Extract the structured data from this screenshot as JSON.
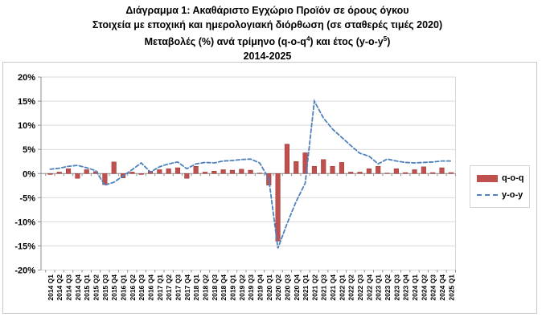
{
  "title": {
    "line1": "Διάγραμμα 1: Ακαθάριστο Εγχώριο Προϊόν σε όρους όγκου",
    "line2": "Στοιχεία με εποχική και ημερολογιακή διόρθωση (σε σταθερές τιμές 2020)",
    "line3_pre": "Μεταβολές (%) ανά τρίμηνο (q-o-q",
    "line3_sup1": "4",
    "line3_mid": ") και έτος (y-o-y",
    "line3_sup2": "5",
    "line3_post": ")",
    "line4": "2014-2025"
  },
  "legend": {
    "qoq_label": "q-o-q",
    "yoy_label": "y-o-y"
  },
  "colors": {
    "bar": "#C0504D",
    "bar_border": "#943634",
    "line": "#4F81BD",
    "grid": "#D9D9D9",
    "axis": "#8C8C8C",
    "plot_border": "#D9D9D9",
    "text": "#000000"
  },
  "chart_data": {
    "type": "combo-bar-line",
    "title": "Διάγραμμα 1: Ακαθάριστο Εγχώριο Προϊόν σε όρους όγκου, Μεταβολές (%) ανά τρίμηνο (q-o-q) και έτος (y-o-y), 2014-2025",
    "xlabel": "",
    "ylabel": "",
    "ylim": [
      -20,
      20
    ],
    "y_tick_step": 5,
    "ylabel_ticks": [
      "20%",
      "15%",
      "10%",
      "5%",
      "0%",
      "-5%",
      "-10%",
      "-15%",
      "-20%"
    ],
    "grid": true,
    "legend_position": "right",
    "categories": [
      "2014 Q1",
      "2014 Q2",
      "2014 Q3",
      "2014 Q4",
      "2015 Q1",
      "2015 Q2",
      "2015 Q3",
      "2015 Q4",
      "2016 Q1",
      "2016 Q2",
      "2016 Q3",
      "2016 Q4",
      "2017 Q1",
      "2017 Q2",
      "2017 Q3",
      "2017 Q4",
      "2018 Q1",
      "2018 Q2",
      "2018 Q3",
      "2018 Q4",
      "2019 Q1",
      "2019 Q2",
      "2019 Q3",
      "2019 Q4",
      "2020 Q1",
      "2020 Q2",
      "2020 Q3",
      "2020 Q4",
      "2021 Q1",
      "2021 Q2",
      "2021 Q3",
      "2021 Q4",
      "2022 Q1",
      "2022 Q2",
      "2022 Q3",
      "2022 Q4",
      "2023 Q1",
      "2023 Q2",
      "2023 Q3",
      "2023 Q4",
      "2024 Q1",
      "2024 Q2",
      "2024 Q3",
      "2024 Q4",
      "2025 Q1"
    ],
    "series": [
      {
        "name": "q-o-q",
        "type": "bar",
        "color": "#C0504D",
        "values": [
          -0.2,
          0.3,
          1.0,
          -1.0,
          0.8,
          0.4,
          -2.3,
          2.4,
          -0.9,
          0.3,
          -0.2,
          0.5,
          0.8,
          1.0,
          1.2,
          -1.0,
          1.5,
          0.3,
          0.5,
          0.8,
          0.7,
          0.9,
          0.7,
          0.1,
          -2.4,
          -14.0,
          6.1,
          2.5,
          4.3,
          1.5,
          2.9,
          1.5,
          2.3,
          0.3,
          0.3,
          1.0,
          1.5,
          0.1,
          1.0,
          0.2,
          0.8,
          1.4,
          0.2,
          1.2,
          0.2
        ]
      },
      {
        "name": "y-o-y",
        "type": "line",
        "dashed": true,
        "color": "#4F81BD",
        "values": [
          0.9,
          1.1,
          1.5,
          1.7,
          1.2,
          0.6,
          -2.4,
          -1.8,
          -0.5,
          0.8,
          2.2,
          0.3,
          1.4,
          2.0,
          2.4,
          1.0,
          2.0,
          2.3,
          2.2,
          2.6,
          2.7,
          2.9,
          3.0,
          2.2,
          -1.1,
          -15.5,
          -10.4,
          -5.8,
          -2.0,
          15.0,
          11.5,
          9.2,
          7.5,
          5.8,
          4.2,
          3.6,
          2.0,
          3.0,
          2.6,
          2.3,
          2.2,
          2.3,
          2.4,
          2.6,
          2.6
        ]
      }
    ]
  }
}
